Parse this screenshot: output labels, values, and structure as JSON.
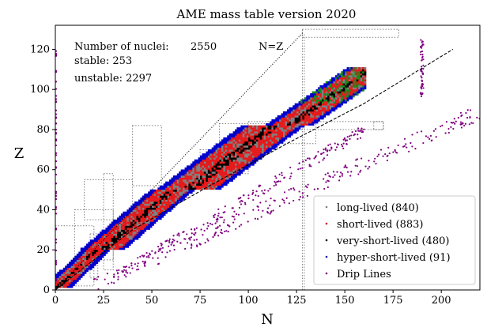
{
  "chart_data": {
    "type": "scatter",
    "title": "AME mass table version 2020",
    "xlabel": "N",
    "ylabel": "Z",
    "xlim": [
      0,
      220
    ],
    "ylim": [
      0,
      132
    ],
    "xticks": [
      0,
      25,
      50,
      75,
      100,
      125,
      150,
      175,
      200
    ],
    "yticks": [
      0,
      20,
      40,
      60,
      80,
      100,
      120
    ],
    "grid": false,
    "legend_position": "lower-right",
    "annotations": {
      "count_label": "Number of nuclei:",
      "count_value": "2550",
      "stable": "stable: 253",
      "unstable": "unstable: 2297",
      "nz_label": "N=Z"
    },
    "series": [
      {
        "name": "long-lived (840)",
        "color": "#d62728",
        "marker": "square"
      },
      {
        "name": "short-lived (883)",
        "color": "#e41a1c",
        "marker": "square"
      },
      {
        "name": "very-short-lived (480)",
        "color": "#0000cc",
        "marker": "square"
      },
      {
        "name": "hyper-short-lived (91)",
        "color": "#1a8a1a",
        "marker": "square"
      },
      {
        "name": "Drip Lines",
        "color": "#800080",
        "marker": "dot"
      }
    ],
    "lines": [
      {
        "label": "N=Z",
        "style": "dotted",
        "x": [
          0,
          128
        ],
        "y": [
          0,
          128
        ]
      },
      {
        "label": "stability line",
        "style": "dashed",
        "x": [
          0,
          40,
          80,
          120,
          160,
          206
        ],
        "y": [
          0,
          30,
          52,
          73,
          93,
          120
        ]
      }
    ],
    "legend_marker_colors": {
      "long-lived (840)": "#808080",
      "short-lived (883)": "#cc0000",
      "very-short-lived (480)": "#000000",
      "hyper-short-lived (91)": "#0000aa",
      "Drip Lines": "#800080"
    }
  }
}
